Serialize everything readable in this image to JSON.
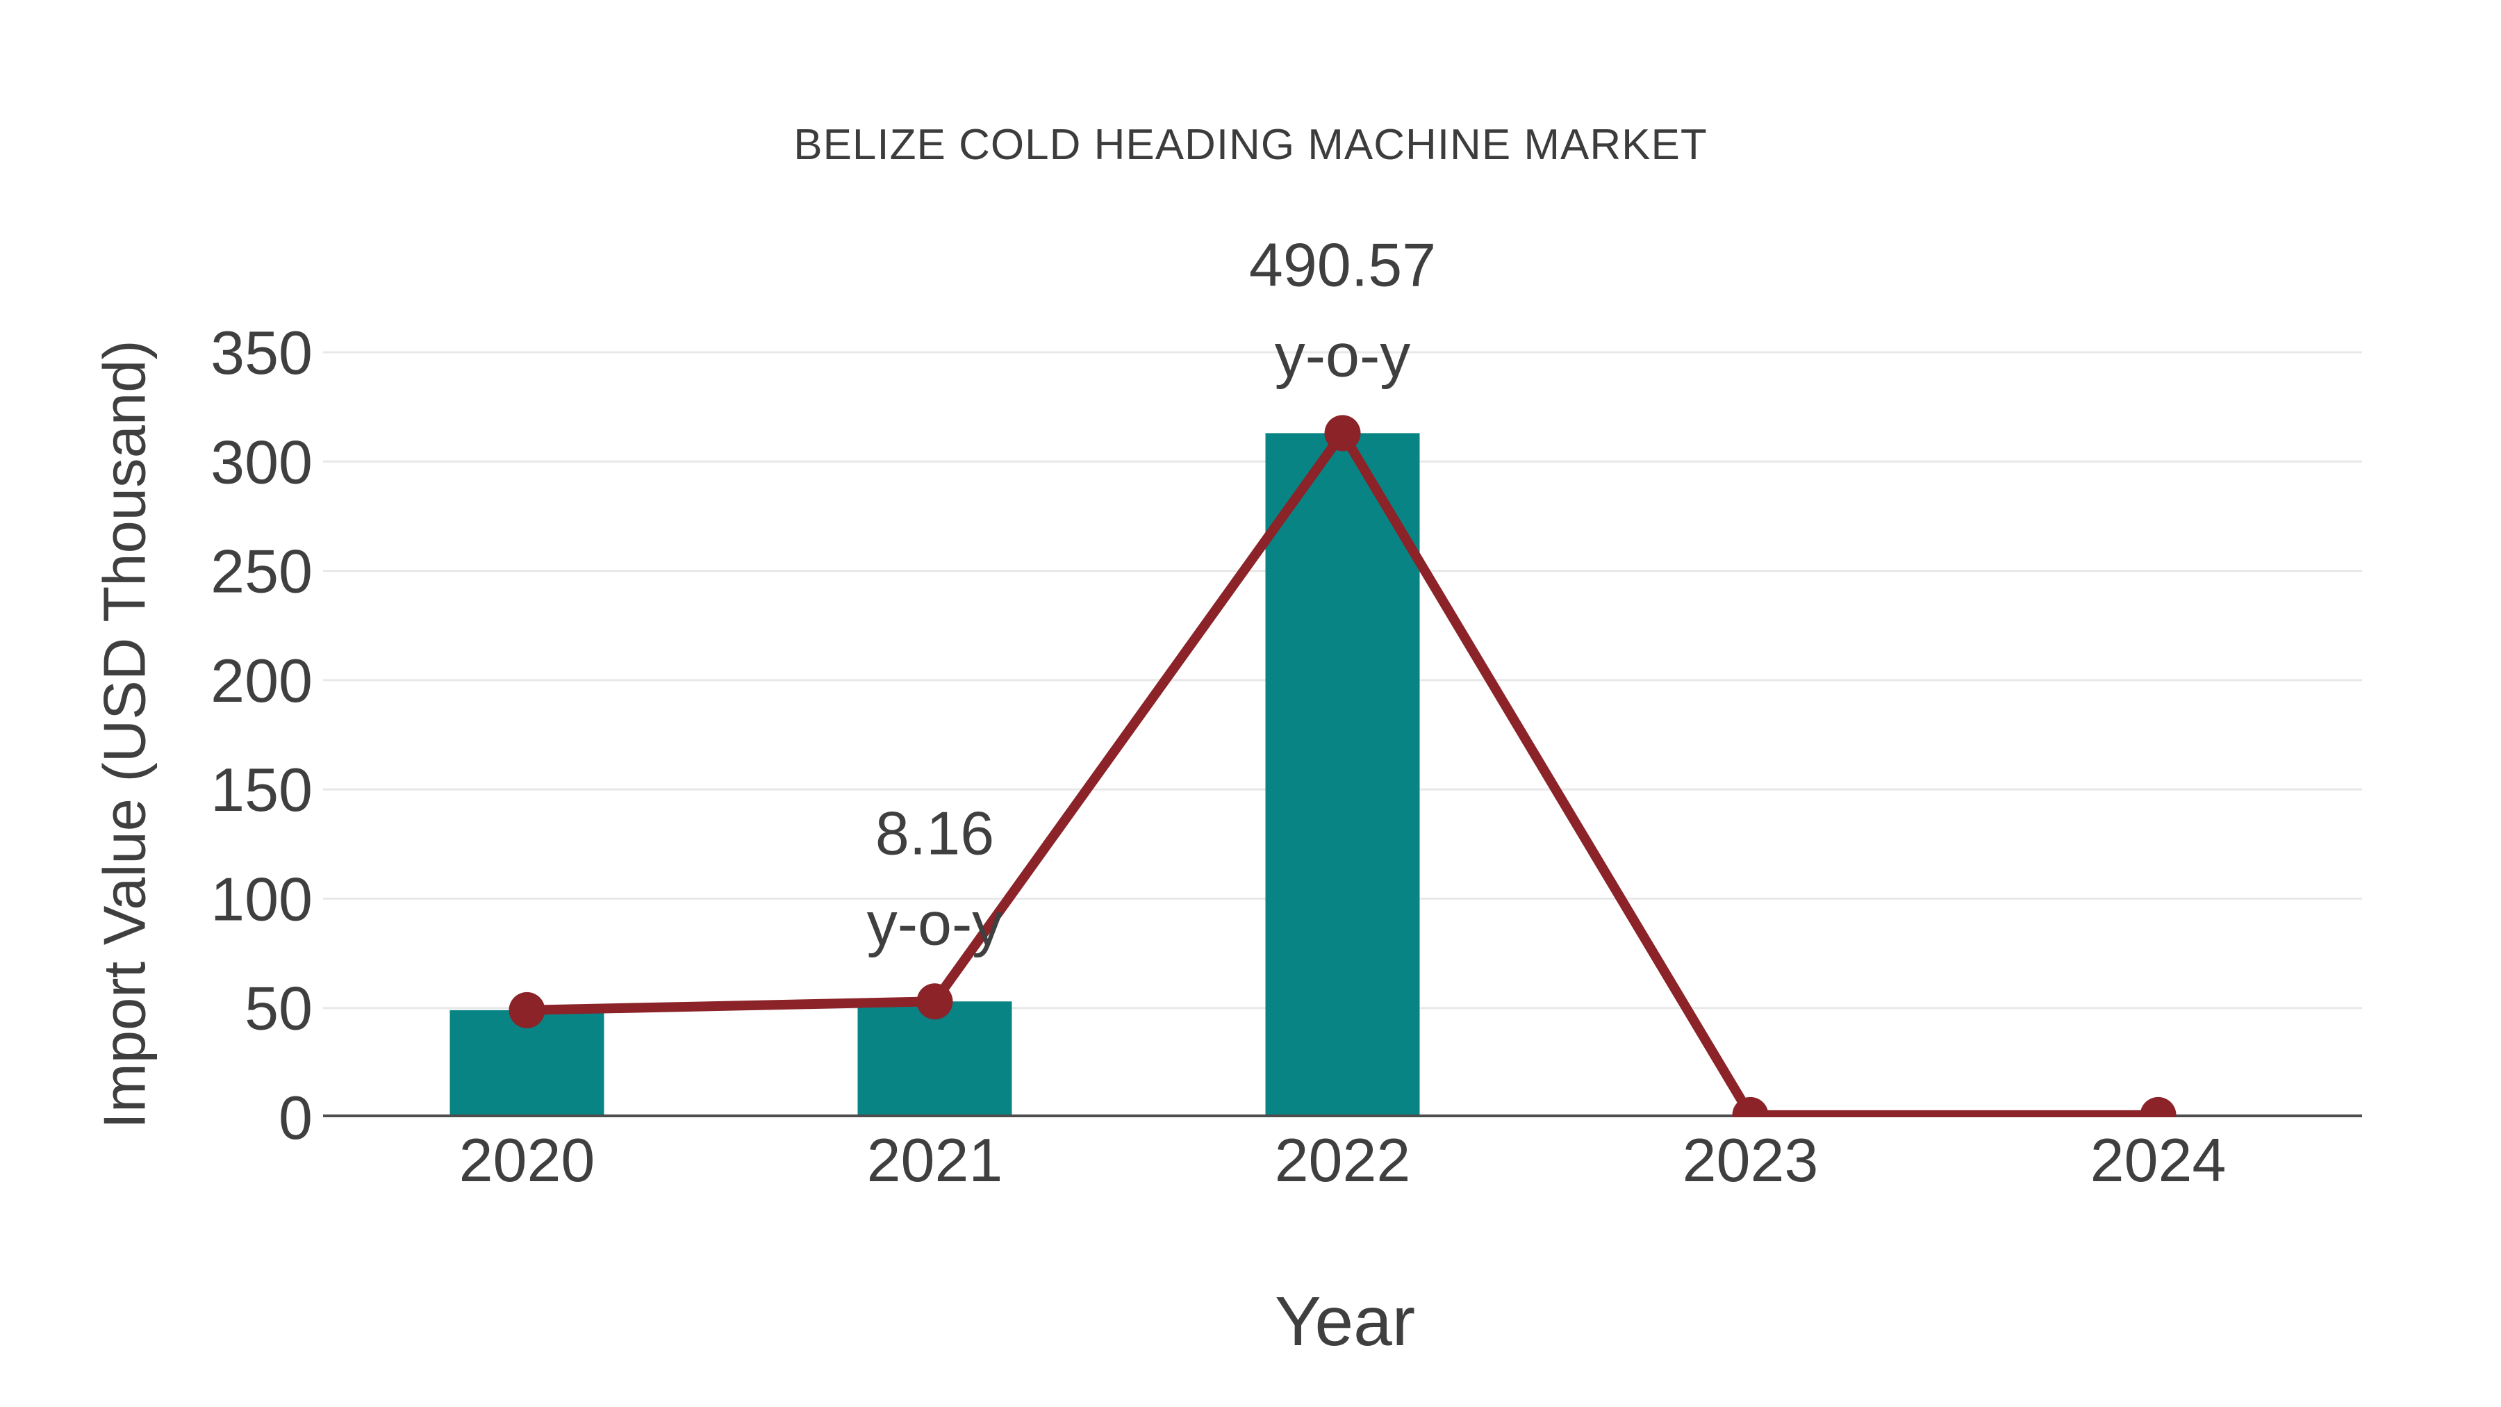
{
  "chart_data": {
    "type": "bar",
    "title": "BELIZE COLD HEADING MACHINE MARKET",
    "xlabel": "Year",
    "ylabel": "Import Value (USD Thousand)",
    "categories": [
      "2020",
      "2021",
      "2022",
      "2023",
      "2024"
    ],
    "series": [
      {
        "name": "import-value-bars",
        "type": "bar",
        "color": "#088484",
        "values": [
          49,
          53,
          313,
          1,
          1
        ]
      },
      {
        "name": "import-value-line",
        "type": "line",
        "color": "#8b2329",
        "values": [
          49,
          53,
          313,
          1,
          1
        ]
      }
    ],
    "annotations": [
      {
        "category": "2021",
        "lines": [
          "8.16",
          "y-o-y"
        ]
      },
      {
        "category": "2022",
        "lines": [
          "490.57",
          "y-o-y"
        ]
      }
    ],
    "yticks": [
      0,
      50,
      100,
      150,
      200,
      250,
      300,
      350
    ],
    "ylim": [
      0,
      371
    ],
    "grid": true,
    "legend_position": "none",
    "colors": {
      "bar": "#088484",
      "line": "#8b2329",
      "grid": "#e8e8e8",
      "axis": "#4d4d4d",
      "text": "#3f3f3f"
    }
  }
}
